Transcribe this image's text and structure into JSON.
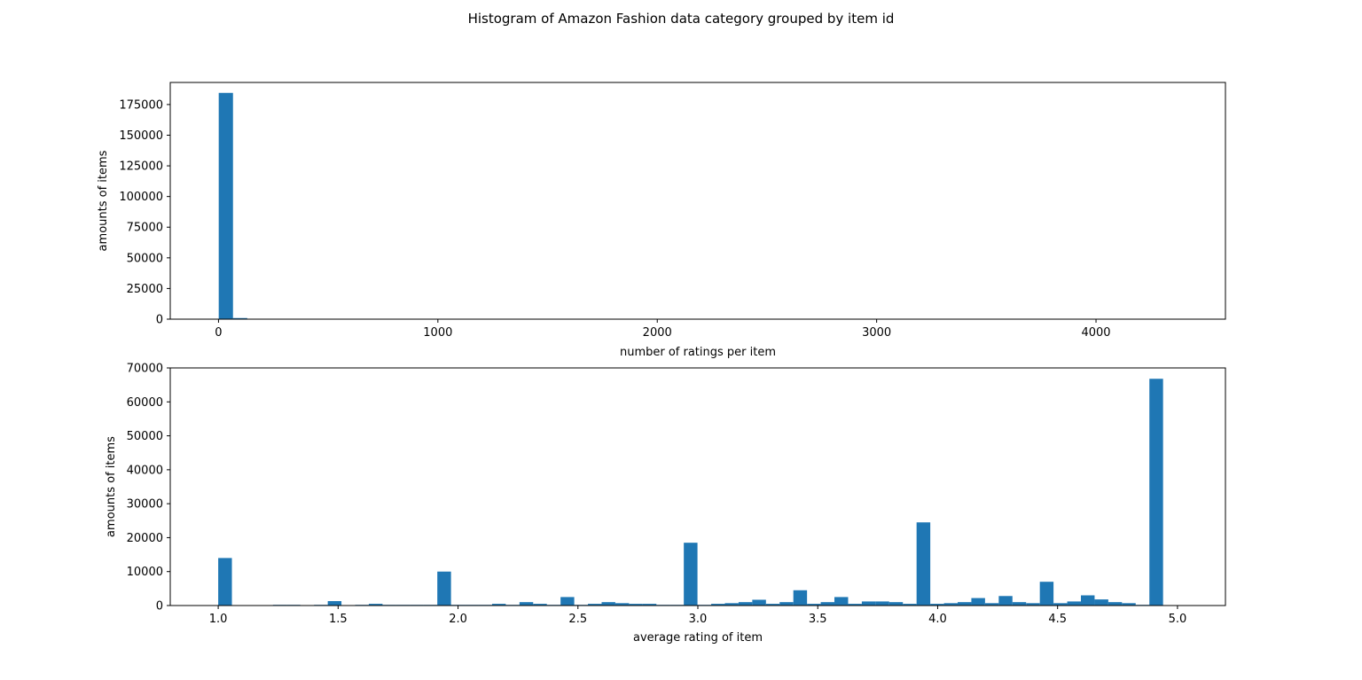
{
  "figure": {
    "title": "Histogram of Amazon Fashion data category grouped by item id"
  },
  "chart_data": [
    {
      "type": "bar",
      "name": "ratings-count-histogram",
      "xlabel": "number of ratings per item",
      "ylabel": "amounts of items",
      "xlim": [
        -220,
        4590
      ],
      "ylim": [
        0,
        193000
      ],
      "xticks": [
        0,
        1000,
        2000,
        3000,
        4000
      ],
      "xtick_labels": [
        "0",
        "1000",
        "2000",
        "3000",
        "4000"
      ],
      "yticks": [
        0,
        25000,
        50000,
        75000,
        100000,
        125000,
        150000,
        175000
      ],
      "ytick_labels": [
        "0",
        "25000",
        "50000",
        "75000",
        "100000",
        "125000",
        "150000",
        "175000"
      ],
      "bin_edges": [
        1,
        66,
        131,
        196,
        261,
        326,
        391,
        456,
        521,
        586,
        651,
        716,
        781,
        846,
        911,
        976,
        1041,
        1106,
        1171,
        1236,
        1301,
        1366,
        1431,
        1496,
        1561,
        1626,
        1691,
        1756,
        1821,
        1886,
        1951,
        2016,
        2081,
        2146,
        2211,
        2276,
        2341,
        2406,
        2471,
        2536,
        2601,
        2666,
        2731,
        2796,
        2861,
        2926,
        2991,
        3056,
        3121,
        3186,
        3251,
        3316,
        3381,
        3446,
        3511,
        3576,
        3641,
        3706,
        3771,
        3836,
        3901,
        3966,
        4031,
        4096,
        4161,
        4226,
        4291,
        4356
      ],
      "values": [
        184500,
        900,
        150,
        60,
        30,
        15,
        10,
        6,
        4,
        3,
        2,
        2,
        1,
        1,
        1,
        1,
        1,
        1,
        1,
        1,
        0,
        0,
        0,
        0,
        0,
        0,
        0,
        0,
        0,
        0,
        0,
        0,
        0,
        0,
        0,
        0,
        0,
        0,
        0,
        0,
        0,
        0,
        0,
        0,
        0,
        0,
        0,
        0,
        0,
        0,
        0,
        0,
        0,
        0,
        0,
        0,
        0,
        0,
        0,
        0,
        0,
        0,
        0,
        0,
        0,
        0,
        1
      ],
      "color": "#1f77b4",
      "grid": false
    },
    {
      "type": "bar",
      "name": "average-rating-histogram",
      "xlabel": "average rating of item",
      "ylabel": "amounts of items",
      "xlim": [
        0.8,
        5.2
      ],
      "ylim": [
        0,
        70000
      ],
      "xticks": [
        1.0,
        1.5,
        2.0,
        2.5,
        3.0,
        3.5,
        4.0,
        4.5,
        5.0
      ],
      "xtick_labels": [
        "1.0",
        "1.5",
        "2.0",
        "2.5",
        "3.0",
        "3.5",
        "4.0",
        "4.5",
        "5.0"
      ],
      "yticks": [
        0,
        10000,
        20000,
        30000,
        40000,
        50000,
        60000,
        70000
      ],
      "ytick_labels": [
        "0",
        "10000",
        "20000",
        "30000",
        "40000",
        "50000",
        "60000",
        "70000"
      ],
      "bin_start": 1.0,
      "bin_width": 0.0571,
      "values": [
        14000,
        0,
        0,
        0,
        200,
        200,
        0,
        200,
        1300,
        0,
        200,
        500,
        200,
        200,
        200,
        200,
        10000,
        200,
        200,
        200,
        500,
        200,
        1000,
        500,
        200,
        2500,
        200,
        500,
        1000,
        700,
        500,
        500,
        200,
        200,
        18500,
        200,
        500,
        700,
        1000,
        1700,
        500,
        1000,
        4500,
        500,
        1000,
        2500,
        500,
        1200,
        1200,
        1000,
        500,
        24500,
        500,
        700,
        1000,
        2200,
        700,
        2800,
        1000,
        700,
        7000,
        700,
        1200,
        3000,
        1800,
        1000,
        700,
        200,
        66800
      ],
      "color": "#1f77b4",
      "grid": false
    }
  ]
}
